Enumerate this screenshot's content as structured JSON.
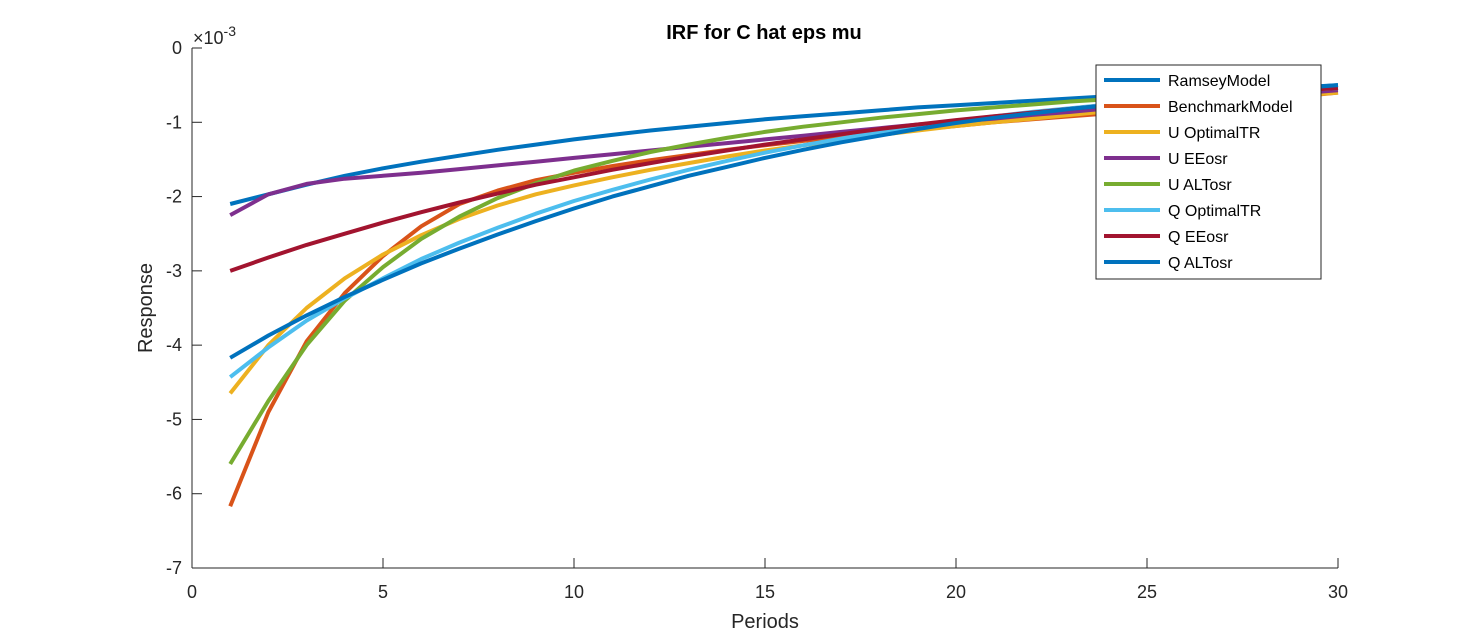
{
  "chart_data": {
    "type": "line",
    "title": "IRF for C hat eps mu",
    "xlabel": "Periods",
    "ylabel": "Response",
    "exponent_label": "×10",
    "exponent_power": "-3",
    "xlim": [
      0,
      30
    ],
    "ylim": [
      -7,
      0
    ],
    "xticks": [
      "0",
      "5",
      "10",
      "15",
      "20",
      "25",
      "30"
    ],
    "yticks": [
      "0",
      "-1",
      "-2",
      "-3",
      "-4",
      "-5",
      "-6",
      "-7"
    ],
    "grid": false,
    "legend_position": "top-right",
    "x": [
      1,
      2,
      3,
      4,
      5,
      6,
      7,
      8,
      9,
      10,
      11,
      12,
      13,
      14,
      15,
      16,
      17,
      18,
      19,
      20,
      21,
      22,
      23,
      24,
      25,
      26,
      27,
      28,
      29,
      30
    ],
    "series": [
      {
        "name": "RamseyModel",
        "color": "#0072BD",
        "values": [
          -2.1,
          -1.97,
          -1.84,
          -1.72,
          -1.62,
          -1.53,
          -1.45,
          -1.37,
          -1.3,
          -1.23,
          -1.17,
          -1.11,
          -1.06,
          -1.01,
          -0.96,
          -0.92,
          -0.88,
          -0.84,
          -0.8,
          -0.77,
          -0.74,
          -0.71,
          -0.68,
          -0.65,
          -0.62,
          -0.6,
          -0.57,
          -0.55,
          -0.53,
          -0.5
        ]
      },
      {
        "name": "BenchmarkModel",
        "color": "#D95319",
        "values": [
          -6.17,
          -4.9,
          -3.95,
          -3.3,
          -2.8,
          -2.4,
          -2.1,
          -1.92,
          -1.78,
          -1.68,
          -1.59,
          -1.51,
          -1.44,
          -1.37,
          -1.31,
          -1.25,
          -1.2,
          -1.15,
          -1.1,
          -1.05,
          -1.0,
          -0.96,
          -0.92,
          -0.88,
          -0.83,
          -0.79,
          -0.74,
          -0.7,
          -0.65,
          -0.6
        ]
      },
      {
        "name": "U OptimalTR",
        "color": "#EDB120",
        "values": [
          -4.65,
          -4.0,
          -3.5,
          -3.1,
          -2.78,
          -2.52,
          -2.3,
          -2.12,
          -1.97,
          -1.85,
          -1.74,
          -1.64,
          -1.55,
          -1.46,
          -1.38,
          -1.31,
          -1.24,
          -1.17,
          -1.11,
          -1.05,
          -1.0,
          -0.95,
          -0.9,
          -0.85,
          -0.8,
          -0.76,
          -0.72,
          -0.68,
          -0.64,
          -0.6
        ]
      },
      {
        "name": "U EEosr",
        "color": "#7E2F8E",
        "values": [
          -2.25,
          -1.97,
          -1.83,
          -1.76,
          -1.72,
          -1.68,
          -1.63,
          -1.58,
          -1.53,
          -1.48,
          -1.43,
          -1.38,
          -1.33,
          -1.28,
          -1.23,
          -1.18,
          -1.13,
          -1.08,
          -1.03,
          -0.99,
          -0.95,
          -0.9,
          -0.86,
          -0.81,
          -0.77,
          -0.73,
          -0.69,
          -0.65,
          -0.61,
          -0.57
        ]
      },
      {
        "name": "U ALTosr",
        "color": "#77AC30",
        "values": [
          -5.6,
          -4.75,
          -4.0,
          -3.4,
          -2.95,
          -2.57,
          -2.27,
          -2.02,
          -1.82,
          -1.65,
          -1.52,
          -1.4,
          -1.3,
          -1.21,
          -1.13,
          -1.06,
          -1.0,
          -0.94,
          -0.89,
          -0.84,
          -0.8,
          -0.76,
          -0.72,
          -0.69,
          -0.66,
          -0.63,
          -0.6,
          -0.58,
          -0.56,
          -0.54
        ]
      },
      {
        "name": "Q OptimalTR",
        "color": "#4DBEEE",
        "values": [
          -4.43,
          -4.03,
          -3.67,
          -3.37,
          -3.1,
          -2.84,
          -2.62,
          -2.42,
          -2.23,
          -2.06,
          -1.91,
          -1.77,
          -1.64,
          -1.52,
          -1.41,
          -1.31,
          -1.22,
          -1.13,
          -1.05,
          -0.98,
          -0.92,
          -0.86,
          -0.81,
          -0.76,
          -0.72,
          -0.68,
          -0.64,
          -0.6,
          -0.57,
          -0.54
        ]
      },
      {
        "name": "Q EEosr",
        "color": "#A2142F",
        "values": [
          -3.0,
          -2.82,
          -2.65,
          -2.5,
          -2.35,
          -2.21,
          -2.08,
          -1.96,
          -1.84,
          -1.74,
          -1.64,
          -1.55,
          -1.46,
          -1.38,
          -1.3,
          -1.23,
          -1.16,
          -1.09,
          -1.03,
          -0.97,
          -0.92,
          -0.87,
          -0.82,
          -0.77,
          -0.73,
          -0.69,
          -0.65,
          -0.61,
          -0.57,
          -0.54
        ]
      },
      {
        "name": "Q ALTosr",
        "color": "#0072BD",
        "values": [
          -4.17,
          -3.87,
          -3.6,
          -3.35,
          -3.12,
          -2.9,
          -2.7,
          -2.51,
          -2.33,
          -2.16,
          -2.0,
          -1.86,
          -1.72,
          -1.6,
          -1.48,
          -1.37,
          -1.27,
          -1.18,
          -1.09,
          -1.01,
          -0.94,
          -0.88,
          -0.82,
          -0.77,
          -0.72,
          -0.67,
          -0.63,
          -0.58,
          -0.54,
          -0.5
        ]
      }
    ]
  }
}
